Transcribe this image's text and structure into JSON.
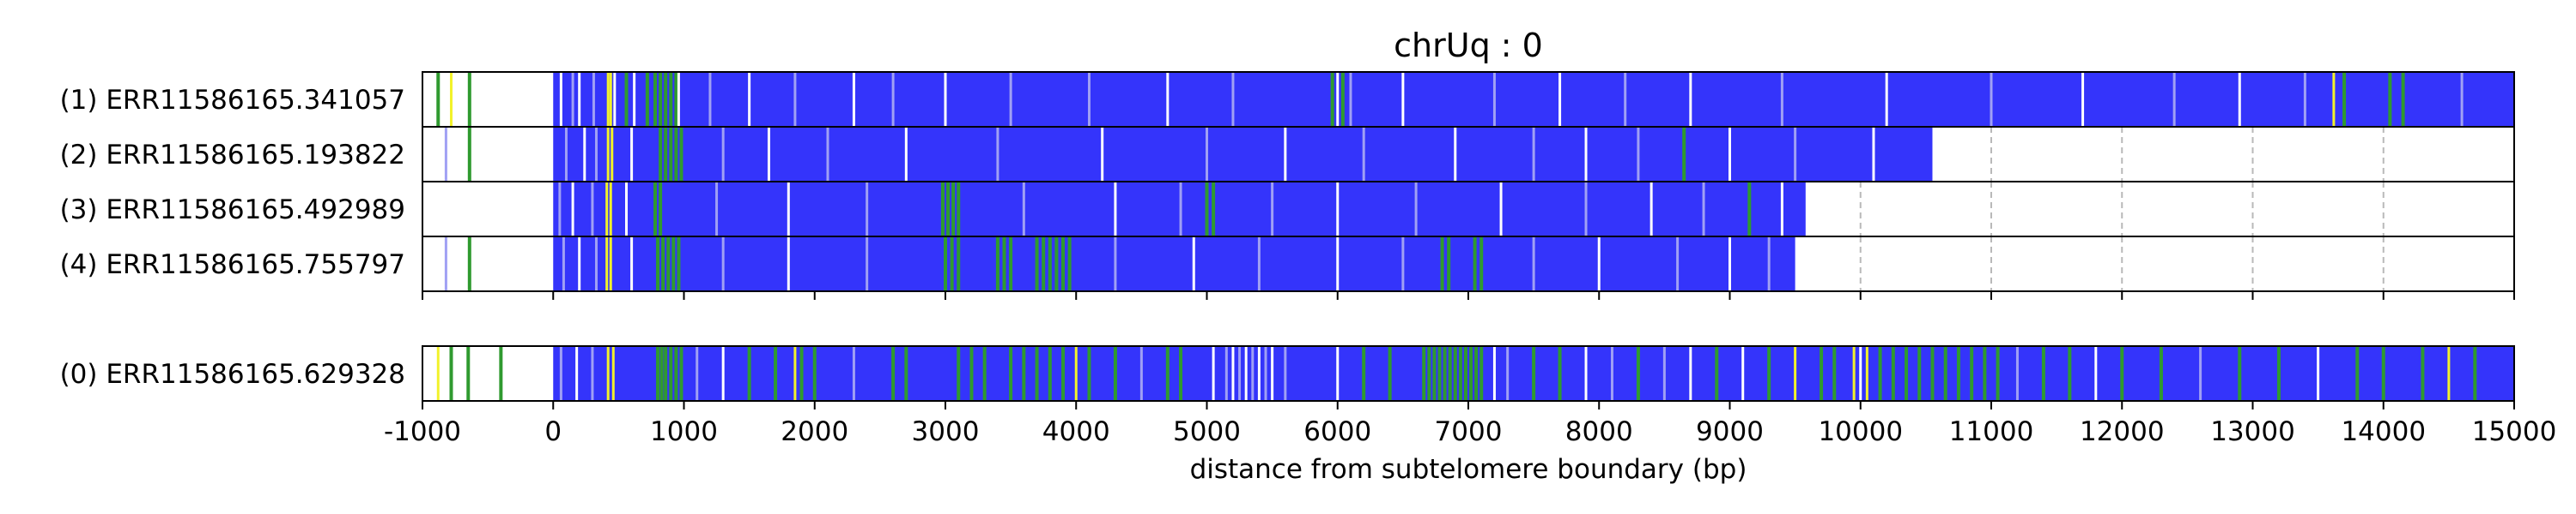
{
  "chart_data": {
    "type": "heatmap",
    "title": "chrUq : 0",
    "xlabel": "distance from subtelomere boundary (bp)",
    "xlim": [
      -1000,
      15000
    ],
    "xticks": [
      "-1000",
      "0",
      "1000",
      "2000",
      "3000",
      "4000",
      "5000",
      "6000",
      "7000",
      "8000",
      "9000",
      "10000",
      "11000",
      "12000",
      "13000",
      "14000",
      "15000"
    ],
    "grid": "dashed vertical lines every 1000 bp",
    "colors": {
      "base": "#3434fb",
      "white": "#ffffff",
      "green": "#2f9a2f",
      "yellow": "#f2f22a",
      "light": "#a0a0f4",
      "outline": "#000000",
      "grid": "#b9b9b9"
    },
    "reads": [
      {
        "label": "(1) ERR11586165.341057",
        "start": 0,
        "end": 15000,
        "marks": [
          [
            -880,
            "green"
          ],
          [
            -780,
            "yellow"
          ],
          [
            -640,
            "green"
          ],
          [
            60,
            "white"
          ],
          [
            150,
            "light"
          ],
          [
            200,
            "white"
          ],
          [
            310,
            "light"
          ],
          [
            420,
            "yellow"
          ],
          [
            440,
            "yellow"
          ],
          [
            470,
            "white"
          ],
          [
            560,
            "green"
          ],
          [
            620,
            "white"
          ],
          [
            720,
            "green"
          ],
          [
            780,
            "green"
          ],
          [
            820,
            "green"
          ],
          [
            860,
            "green"
          ],
          [
            900,
            "green"
          ],
          [
            940,
            "green"
          ],
          [
            960,
            "white"
          ],
          [
            1200,
            "light"
          ],
          [
            1500,
            "white"
          ],
          [
            1850,
            "light"
          ],
          [
            2300,
            "white"
          ],
          [
            2600,
            "light"
          ],
          [
            3000,
            "white"
          ],
          [
            3500,
            "light"
          ],
          [
            4100,
            "light"
          ],
          [
            4700,
            "white"
          ],
          [
            5200,
            "light"
          ],
          [
            5960,
            "green"
          ],
          [
            6000,
            "white"
          ],
          [
            6040,
            "green"
          ],
          [
            6100,
            "light"
          ],
          [
            6500,
            "white"
          ],
          [
            7200,
            "light"
          ],
          [
            7700,
            "white"
          ],
          [
            8200,
            "light"
          ],
          [
            8700,
            "white"
          ],
          [
            9400,
            "light"
          ],
          [
            10200,
            "white"
          ],
          [
            11000,
            "light"
          ],
          [
            11700,
            "white"
          ],
          [
            12400,
            "light"
          ],
          [
            12900,
            "white"
          ],
          [
            13400,
            "light"
          ],
          [
            13620,
            "yellow"
          ],
          [
            13700,
            "green"
          ],
          [
            14050,
            "green"
          ],
          [
            14150,
            "green"
          ],
          [
            14600,
            "light"
          ]
        ]
      },
      {
        "label": "(2) ERR11586165.193822",
        "start": 0,
        "end": 10550,
        "marks": [
          [
            -820,
            "light"
          ],
          [
            -640,
            "green"
          ],
          [
            100,
            "light"
          ],
          [
            240,
            "white"
          ],
          [
            330,
            "light"
          ],
          [
            420,
            "yellow"
          ],
          [
            450,
            "yellow"
          ],
          [
            600,
            "white"
          ],
          [
            820,
            "green"
          ],
          [
            860,
            "green"
          ],
          [
            900,
            "green"
          ],
          [
            940,
            "green"
          ],
          [
            980,
            "green"
          ],
          [
            1300,
            "light"
          ],
          [
            1650,
            "white"
          ],
          [
            2100,
            "light"
          ],
          [
            2700,
            "white"
          ],
          [
            3400,
            "light"
          ],
          [
            4200,
            "white"
          ],
          [
            5000,
            "light"
          ],
          [
            5600,
            "white"
          ],
          [
            6200,
            "light"
          ],
          [
            6900,
            "white"
          ],
          [
            7500,
            "light"
          ],
          [
            7900,
            "white"
          ],
          [
            8300,
            "light"
          ],
          [
            8650,
            "green"
          ],
          [
            9000,
            "white"
          ],
          [
            9500,
            "light"
          ],
          [
            10100,
            "white"
          ]
        ]
      },
      {
        "label": "(3) ERR11586165.492989",
        "start": 0,
        "end": 9580,
        "marks": [
          [
            50,
            "light"
          ],
          [
            150,
            "white"
          ],
          [
            300,
            "light"
          ],
          [
            410,
            "yellow"
          ],
          [
            440,
            "yellow"
          ],
          [
            560,
            "white"
          ],
          [
            780,
            "green"
          ],
          [
            820,
            "green"
          ],
          [
            1250,
            "light"
          ],
          [
            1800,
            "white"
          ],
          [
            2400,
            "light"
          ],
          [
            2980,
            "green"
          ],
          [
            3020,
            "green"
          ],
          [
            3060,
            "green"
          ],
          [
            3100,
            "green"
          ],
          [
            3600,
            "light"
          ],
          [
            4300,
            "white"
          ],
          [
            4800,
            "light"
          ],
          [
            5000,
            "green"
          ],
          [
            5050,
            "green"
          ],
          [
            5500,
            "light"
          ],
          [
            6000,
            "white"
          ],
          [
            6600,
            "light"
          ],
          [
            7250,
            "white"
          ],
          [
            7900,
            "light"
          ],
          [
            8400,
            "white"
          ],
          [
            8800,
            "light"
          ],
          [
            9150,
            "green"
          ],
          [
            9400,
            "white"
          ]
        ]
      },
      {
        "label": "(4) ERR11586165.755797",
        "start": 0,
        "end": 9500,
        "marks": [
          [
            -820,
            "light"
          ],
          [
            -640,
            "green"
          ],
          [
            80,
            "light"
          ],
          [
            200,
            "white"
          ],
          [
            330,
            "light"
          ],
          [
            410,
            "yellow"
          ],
          [
            440,
            "yellow"
          ],
          [
            600,
            "white"
          ],
          [
            800,
            "green"
          ],
          [
            840,
            "green"
          ],
          [
            880,
            "green"
          ],
          [
            920,
            "green"
          ],
          [
            960,
            "green"
          ],
          [
            1300,
            "light"
          ],
          [
            1800,
            "white"
          ],
          [
            2400,
            "light"
          ],
          [
            3000,
            "green"
          ],
          [
            3050,
            "green"
          ],
          [
            3100,
            "green"
          ],
          [
            3400,
            "green"
          ],
          [
            3450,
            "green"
          ],
          [
            3500,
            "green"
          ],
          [
            3700,
            "green"
          ],
          [
            3750,
            "green"
          ],
          [
            3800,
            "green"
          ],
          [
            3850,
            "green"
          ],
          [
            3900,
            "green"
          ],
          [
            3950,
            "green"
          ],
          [
            4300,
            "light"
          ],
          [
            4900,
            "white"
          ],
          [
            5400,
            "light"
          ],
          [
            6000,
            "white"
          ],
          [
            6500,
            "light"
          ],
          [
            6800,
            "green"
          ],
          [
            6850,
            "green"
          ],
          [
            7050,
            "green"
          ],
          [
            7100,
            "green"
          ],
          [
            7500,
            "light"
          ],
          [
            8000,
            "white"
          ],
          [
            8600,
            "light"
          ],
          [
            9000,
            "white"
          ],
          [
            9300,
            "light"
          ]
        ]
      }
    ],
    "reference": {
      "label": "(0) ERR11586165.629328",
      "start": 0,
      "end": 15000,
      "marks": [
        [
          -880,
          "yellow"
        ],
        [
          -780,
          "green"
        ],
        [
          -650,
          "green"
        ],
        [
          -400,
          "green"
        ],
        [
          60,
          "light"
        ],
        [
          180,
          "white"
        ],
        [
          300,
          "light"
        ],
        [
          420,
          "yellow"
        ],
        [
          460,
          "yellow"
        ],
        [
          800,
          "green"
        ],
        [
          830,
          "green"
        ],
        [
          860,
          "green"
        ],
        [
          900,
          "green"
        ],
        [
          940,
          "green"
        ],
        [
          980,
          "green"
        ],
        [
          1100,
          "light"
        ],
        [
          1300,
          "white"
        ],
        [
          1500,
          "green"
        ],
        [
          1700,
          "green"
        ],
        [
          1850,
          "yellow"
        ],
        [
          1900,
          "green"
        ],
        [
          2000,
          "green"
        ],
        [
          2300,
          "light"
        ],
        [
          2600,
          "green"
        ],
        [
          2700,
          "green"
        ],
        [
          3100,
          "green"
        ],
        [
          3200,
          "green"
        ],
        [
          3300,
          "green"
        ],
        [
          3500,
          "green"
        ],
        [
          3600,
          "green"
        ],
        [
          3700,
          "green"
        ],
        [
          3800,
          "green"
        ],
        [
          3900,
          "green"
        ],
        [
          4000,
          "yellow"
        ],
        [
          4100,
          "green"
        ],
        [
          4300,
          "green"
        ],
        [
          4500,
          "light"
        ],
        [
          4700,
          "green"
        ],
        [
          4800,
          "green"
        ],
        [
          5050,
          "white"
        ],
        [
          5150,
          "light"
        ],
        [
          5200,
          "white"
        ],
        [
          5250,
          "light"
        ],
        [
          5300,
          "white"
        ],
        [
          5350,
          "light"
        ],
        [
          5400,
          "white"
        ],
        [
          5450,
          "light"
        ],
        [
          5500,
          "white"
        ],
        [
          5600,
          "light"
        ],
        [
          6000,
          "white"
        ],
        [
          6200,
          "green"
        ],
        [
          6400,
          "green"
        ],
        [
          6660,
          "green"
        ],
        [
          6700,
          "green"
        ],
        [
          6740,
          "green"
        ],
        [
          6780,
          "green"
        ],
        [
          6820,
          "green"
        ],
        [
          6860,
          "green"
        ],
        [
          6900,
          "green"
        ],
        [
          6940,
          "green"
        ],
        [
          6980,
          "green"
        ],
        [
          7020,
          "green"
        ],
        [
          7060,
          "green"
        ],
        [
          7100,
          "green"
        ],
        [
          7200,
          "white"
        ],
        [
          7300,
          "light"
        ],
        [
          7500,
          "green"
        ],
        [
          7700,
          "green"
        ],
        [
          7900,
          "white"
        ],
        [
          8100,
          "light"
        ],
        [
          8300,
          "green"
        ],
        [
          8500,
          "light"
        ],
        [
          8700,
          "white"
        ],
        [
          8900,
          "green"
        ],
        [
          9100,
          "white"
        ],
        [
          9300,
          "green"
        ],
        [
          9500,
          "yellow"
        ],
        [
          9700,
          "green"
        ],
        [
          9800,
          "green"
        ],
        [
          9950,
          "yellow"
        ],
        [
          10000,
          "white"
        ],
        [
          10050,
          "yellow"
        ],
        [
          10150,
          "green"
        ],
        [
          10250,
          "green"
        ],
        [
          10350,
          "green"
        ],
        [
          10450,
          "green"
        ],
        [
          10550,
          "green"
        ],
        [
          10650,
          "green"
        ],
        [
          10750,
          "green"
        ],
        [
          10850,
          "green"
        ],
        [
          10950,
          "green"
        ],
        [
          11050,
          "green"
        ],
        [
          11200,
          "light"
        ],
        [
          11400,
          "green"
        ],
        [
          11600,
          "green"
        ],
        [
          11800,
          "white"
        ],
        [
          12000,
          "green"
        ],
        [
          12300,
          "green"
        ],
        [
          12600,
          "light"
        ],
        [
          12900,
          "green"
        ],
        [
          13200,
          "green"
        ],
        [
          13500,
          "white"
        ],
        [
          13800,
          "green"
        ],
        [
          14000,
          "green"
        ],
        [
          14300,
          "green"
        ],
        [
          14500,
          "yellow"
        ],
        [
          14700,
          "green"
        ]
      ]
    }
  }
}
